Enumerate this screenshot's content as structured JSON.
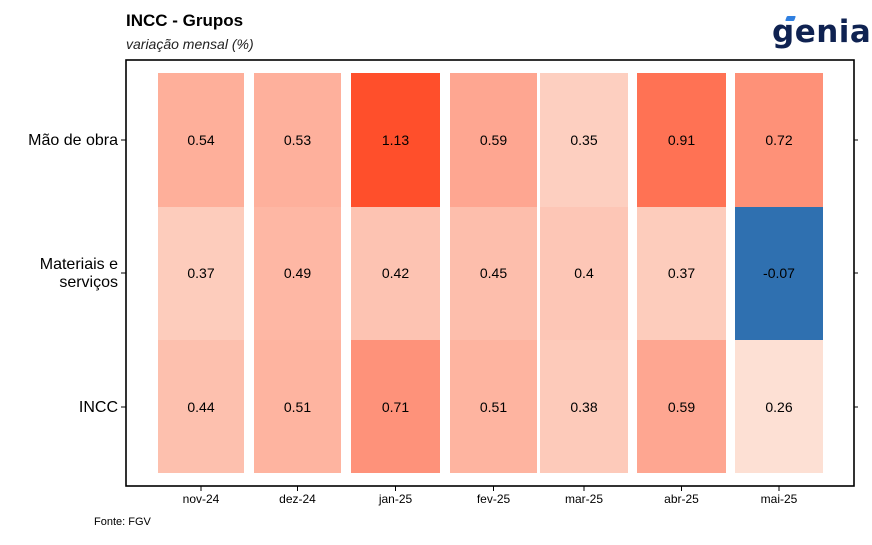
{
  "header": {
    "title": "INCC - Grupos",
    "subtitle": "variação mensal (%)",
    "logo_text": "genial"
  },
  "footer": {
    "source": "Fonte: FGV"
  },
  "colors": {
    "low": "#fde0d4",
    "high": "#ff4f2b",
    "negative": "#2f70b0",
    "frame": "#000000"
  },
  "chart_data": {
    "type": "heatmap",
    "title": "INCC - Grupos",
    "subtitle": "variação mensal (%)",
    "x": [
      "nov-24",
      "dez-24",
      "jan-25",
      "fev-25",
      "mar-25",
      "abr-25",
      "mai-25"
    ],
    "y": [
      [
        "Mão de obra"
      ],
      [
        "Materiais e",
        "serviços"
      ],
      [
        "INCC"
      ]
    ],
    "values": [
      [
        0.54,
        0.53,
        1.13,
        0.59,
        0.35,
        0.91,
        0.72
      ],
      [
        0.37,
        0.49,
        0.42,
        0.45,
        0.4,
        0.37,
        -0.07
      ],
      [
        0.44,
        0.51,
        0.71,
        0.51,
        0.38,
        0.59,
        0.26
      ]
    ],
    "cell_labels": [
      [
        "0.54",
        "0.53",
        "1.13",
        "0.59",
        "0.35",
        "0.91",
        "0.72"
      ],
      [
        "0.37",
        "0.49",
        "0.42",
        "0.45",
        "0.4",
        "0.37",
        "-0.07"
      ],
      [
        "0.44",
        "0.51",
        "0.71",
        "0.51",
        "0.38",
        "0.59",
        "0.26"
      ]
    ],
    "legend": "none",
    "grid": false
  }
}
